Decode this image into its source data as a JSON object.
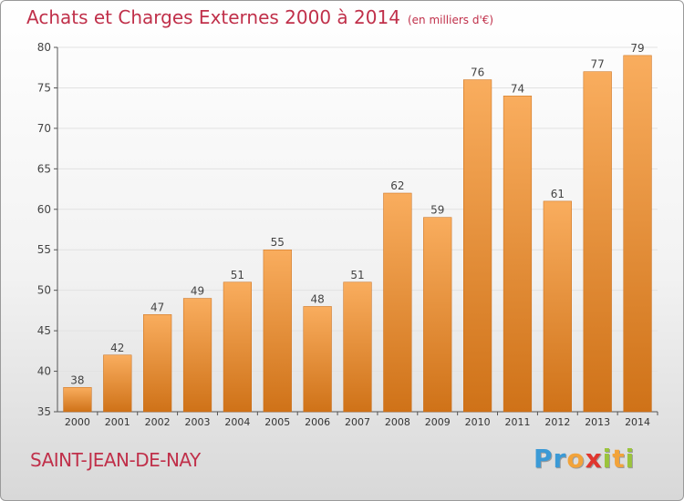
{
  "chart_data": {
    "type": "bar",
    "title": "Achats et Charges Externes 2000 à 2014",
    "subtitle": "(en milliers d'€)",
    "categories": [
      "2000",
      "2001",
      "2002",
      "2003",
      "2004",
      "2005",
      "2006",
      "2007",
      "2008",
      "2009",
      "2010",
      "2011",
      "2012",
      "2013",
      "2014"
    ],
    "values": [
      38,
      42,
      47,
      49,
      51,
      55,
      48,
      51,
      62,
      59,
      76,
      74,
      61,
      77,
      79
    ],
    "ylim": [
      35,
      80
    ],
    "yticks": [
      35,
      40,
      45,
      50,
      55,
      60,
      65,
      70,
      75,
      80
    ],
    "grid": true,
    "bar_color": "#f0913a",
    "bar_gradient": [
      "#f9ad5e",
      "#cf7218"
    ]
  },
  "footer": {
    "place": "SAINT-JEAN-DE-NAY",
    "logo": [
      "P",
      "r",
      "o",
      "x",
      "i",
      "t",
      "i"
    ],
    "logo_colors": [
      "#3b9ad6",
      "#3b9ad6",
      "#f2a33a",
      "#e0362f",
      "#9bc43c",
      "#f2a33a",
      "#9bc43c"
    ]
  }
}
